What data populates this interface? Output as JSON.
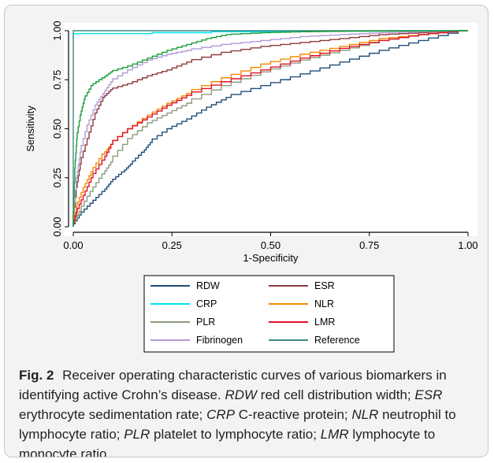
{
  "chart_data": {
    "type": "line",
    "title": "",
    "xlabel": "1-Specificity",
    "ylabel": "Sensitivity",
    "xlim": [
      0,
      1
    ],
    "ylim": [
      0,
      1
    ],
    "x_ticks": [
      "0.00",
      "0.25",
      "0.50",
      "0.75",
      "1.00"
    ],
    "y_ticks": [
      "0.00",
      "0.25",
      "0.50",
      "0.75",
      "1.00"
    ],
    "grid": false,
    "legend_position": "bottom",
    "series": [
      {
        "name": "RDW",
        "color": "#1f4e79",
        "x": [
          0,
          0.02,
          0.05,
          0.08,
          0.1,
          0.13,
          0.15,
          0.18,
          0.2,
          0.25,
          0.3,
          0.35,
          0.4,
          0.5,
          0.6,
          0.7,
          0.8,
          0.9,
          1.0
        ],
        "y": [
          0,
          0.06,
          0.12,
          0.18,
          0.23,
          0.28,
          0.32,
          0.38,
          0.43,
          0.5,
          0.55,
          0.61,
          0.66,
          0.72,
          0.78,
          0.84,
          0.9,
          0.95,
          1.0
        ]
      },
      {
        "name": "ESR",
        "color": "#8e3b3b",
        "x": [
          0,
          0.01,
          0.02,
          0.04,
          0.06,
          0.08,
          0.1,
          0.15,
          0.2,
          0.25,
          0.3,
          0.4,
          0.5,
          0.6,
          0.7,
          0.8,
          0.9,
          1.0
        ],
        "y": [
          0,
          0.2,
          0.32,
          0.45,
          0.58,
          0.66,
          0.7,
          0.73,
          0.77,
          0.8,
          0.84,
          0.89,
          0.92,
          0.94,
          0.96,
          0.98,
          0.99,
          1.0
        ]
      },
      {
        "name": "CRP",
        "color": "#00e5ee",
        "x": [
          0,
          0.2,
          0.35,
          0.5,
          0.6,
          0.7,
          0.8,
          0.9,
          1.0
        ],
        "y": [
          0.96,
          0.985,
          0.99,
          0.995,
          0.997,
          0.998,
          0.999,
          1.0,
          1.0
        ]
      },
      {
        "name": "NLR",
        "color": "#f08c00",
        "x": [
          0,
          0.01,
          0.03,
          0.05,
          0.08,
          0.1,
          0.15,
          0.2,
          0.25,
          0.3,
          0.4,
          0.5,
          0.6,
          0.7,
          0.8,
          0.9,
          1.0
        ],
        "y": [
          0,
          0.1,
          0.2,
          0.28,
          0.37,
          0.42,
          0.5,
          0.57,
          0.63,
          0.68,
          0.76,
          0.83,
          0.88,
          0.92,
          0.96,
          0.98,
          1.0
        ]
      },
      {
        "name": "PLR",
        "color": "#8c9c7c",
        "x": [
          0,
          0.02,
          0.05,
          0.08,
          0.1,
          0.15,
          0.2,
          0.25,
          0.3,
          0.4,
          0.5,
          0.6,
          0.7,
          0.8,
          0.9,
          1.0
        ],
        "y": [
          0,
          0.08,
          0.18,
          0.27,
          0.33,
          0.45,
          0.53,
          0.58,
          0.63,
          0.72,
          0.79,
          0.85,
          0.9,
          0.95,
          0.98,
          1.0
        ]
      },
      {
        "name": "LMR",
        "color": "#e0102a",
        "x": [
          0,
          0.01,
          0.03,
          0.05,
          0.08,
          0.1,
          0.15,
          0.2,
          0.25,
          0.3,
          0.4,
          0.5,
          0.6,
          0.7,
          0.8,
          0.9,
          1.0
        ],
        "y": [
          0,
          0.07,
          0.16,
          0.25,
          0.34,
          0.42,
          0.5,
          0.56,
          0.62,
          0.67,
          0.74,
          0.8,
          0.86,
          0.91,
          0.95,
          0.98,
          1.0
        ]
      },
      {
        "name": "Fibrinogen",
        "color": "#b29bd8",
        "x": [
          0,
          0.01,
          0.02,
          0.04,
          0.06,
          0.08,
          0.1,
          0.15,
          0.2,
          0.25,
          0.3,
          0.4,
          0.5,
          0.6,
          0.7,
          0.8,
          0.9,
          1.0
        ],
        "y": [
          0,
          0.25,
          0.38,
          0.52,
          0.62,
          0.68,
          0.74,
          0.8,
          0.85,
          0.88,
          0.9,
          0.93,
          0.95,
          0.97,
          0.98,
          0.99,
          0.995,
          1.0
        ]
      },
      {
        "name": "Reference",
        "color": "#3e8a84",
        "x": [
          0,
          1
        ],
        "y": [
          0,
          1
        ]
      }
    ],
    "extra_curves": [
      {
        "color": "#1e9e3a",
        "x": [
          0,
          0.005,
          0.01,
          0.02,
          0.03,
          0.05,
          0.08,
          0.1,
          0.15,
          0.2,
          0.25,
          0.3,
          0.35,
          0.4,
          0.5,
          0.6,
          0.7,
          0.8,
          0.9,
          1.0
        ],
        "y": [
          0,
          0.3,
          0.45,
          0.57,
          0.65,
          0.72,
          0.76,
          0.79,
          0.82,
          0.86,
          0.9,
          0.93,
          0.96,
          0.98,
          0.99,
          0.995,
          0.997,
          0.998,
          0.999,
          1.0
        ]
      }
    ]
  },
  "caption": {
    "fig_label": "Fig. 2",
    "title": "Receiver operating characteristic curves of various biomarkers in identifying active Crohn’s disease.",
    "abbr": [
      {
        "term": "RDW",
        "def": "red cell distribution width;"
      },
      {
        "term": "ESR",
        "def": "erythrocyte sedimentation rate;"
      },
      {
        "term": "CRP",
        "def": "C-reactive protein;"
      },
      {
        "term": "NLR",
        "def": "neutrophil to lymphocyte ratio;"
      },
      {
        "term": "PLR",
        "def": "platelet to lymphocyte ratio;"
      },
      {
        "term": "LMR",
        "def": "lymphocyte to monocyte ratio"
      }
    ]
  }
}
